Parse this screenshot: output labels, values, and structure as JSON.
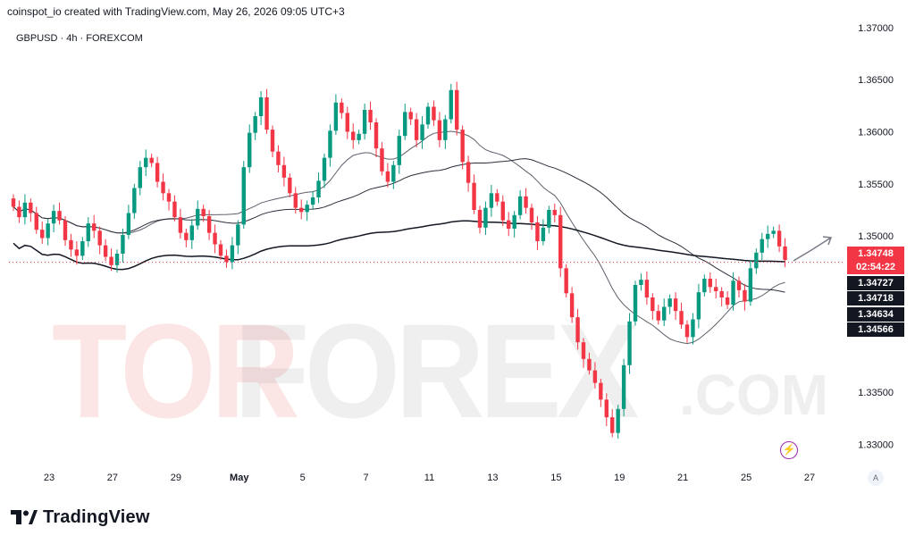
{
  "header": {
    "attribution": "coinspot_io created with TradingView.com, May 26, 2026 09:05 UTC+3",
    "symbol_line": "GBPUSD · 4h · FOREXCOM"
  },
  "watermark": {
    "part1": "TOR",
    "part2": "FOREX",
    "part3": ".COM"
  },
  "logo": {
    "text": "TradingView"
  },
  "axis_button": "A",
  "price_tags": [
    {
      "value": "1.34748",
      "color": "#f23645"
    },
    {
      "value": "02:54:22",
      "color": "#f23645"
    },
    {
      "value": "1.34727",
      "color": "#131722"
    },
    {
      "value": "1.34718",
      "color": "#131722"
    },
    {
      "value": "1.34634",
      "color": "#131722"
    },
    {
      "value": "1.34566",
      "color": "#131722"
    }
  ],
  "chart_data": {
    "type": "candlestick",
    "symbol": "GBPUSD",
    "interval": "4h",
    "ylim": [
      1.3285,
      1.3705
    ],
    "y_ticks": [
      "1.37000",
      "1.36500",
      "1.36000",
      "1.35500",
      "1.35000",
      "1.33500",
      "1.33000"
    ],
    "x_ticks": [
      "23",
      "27",
      "29",
      "May",
      "5",
      "7",
      "11",
      "13",
      "15",
      "19",
      "21",
      "25",
      "27"
    ],
    "x_range_days": [
      0,
      36
    ],
    "last_price": 1.34748,
    "countdown": "02:54:22",
    "colors": {
      "up": "#089981",
      "down": "#f23645"
    },
    "candles_per_day": 6,
    "closes": [
      1.3528,
      1.3518,
      1.3532,
      1.3522,
      1.3506,
      1.3498,
      1.3512,
      1.3524,
      1.3515,
      1.3496,
      1.3487,
      1.3481,
      1.3495,
      1.3512,
      1.3505,
      1.3491,
      1.348,
      1.3472,
      1.3483,
      1.3501,
      1.3522,
      1.3546,
      1.3566,
      1.3575,
      1.357,
      1.3552,
      1.3541,
      1.3533,
      1.3518,
      1.3503,
      1.3496,
      1.351,
      1.3526,
      1.3519,
      1.3503,
      1.3492,
      1.3481,
      1.3475,
      1.3491,
      1.3511,
      1.3566,
      1.3599,
      1.3615,
      1.3633,
      1.3602,
      1.3581,
      1.3568,
      1.3556,
      1.3541,
      1.3527,
      1.3523,
      1.353,
      1.3537,
      1.3553,
      1.3575,
      1.3601,
      1.3628,
      1.3618,
      1.36,
      1.3592,
      1.3598,
      1.3621,
      1.3609,
      1.3584,
      1.3562,
      1.3552,
      1.3568,
      1.3596,
      1.3619,
      1.3612,
      1.3592,
      1.3607,
      1.3624,
      1.3611,
      1.3592,
      1.3612,
      1.364,
      1.3602,
      1.3571,
      1.3551,
      1.3525,
      1.3508,
      1.3527,
      1.3541,
      1.3533,
      1.3515,
      1.3507,
      1.352,
      1.3538,
      1.3527,
      1.3513,
      1.3495,
      1.3508,
      1.3525,
      1.352,
      1.3469,
      1.3445,
      1.3422,
      1.3398,
      1.3382,
      1.3371,
      1.3359,
      1.3343,
      1.3326,
      1.3311,
      1.3334,
      1.3376,
      1.3418,
      1.3453,
      1.3458,
      1.3441,
      1.3428,
      1.3419,
      1.3432,
      1.344,
      1.3428,
      1.3415,
      1.3403,
      1.342,
      1.3446,
      1.3459,
      1.3451,
      1.3447,
      1.3441,
      1.3434,
      1.3457,
      1.3448,
      1.3437,
      1.3469,
      1.3484,
      1.3497,
      1.3502,
      1.3505,
      1.349,
      1.3477
    ],
    "moving_averages": [
      {
        "period": 20,
        "color": "#5d606b"
      },
      {
        "period": 50,
        "color": "#2a2e39"
      },
      {
        "period": 200,
        "color": "#131722"
      }
    ]
  }
}
